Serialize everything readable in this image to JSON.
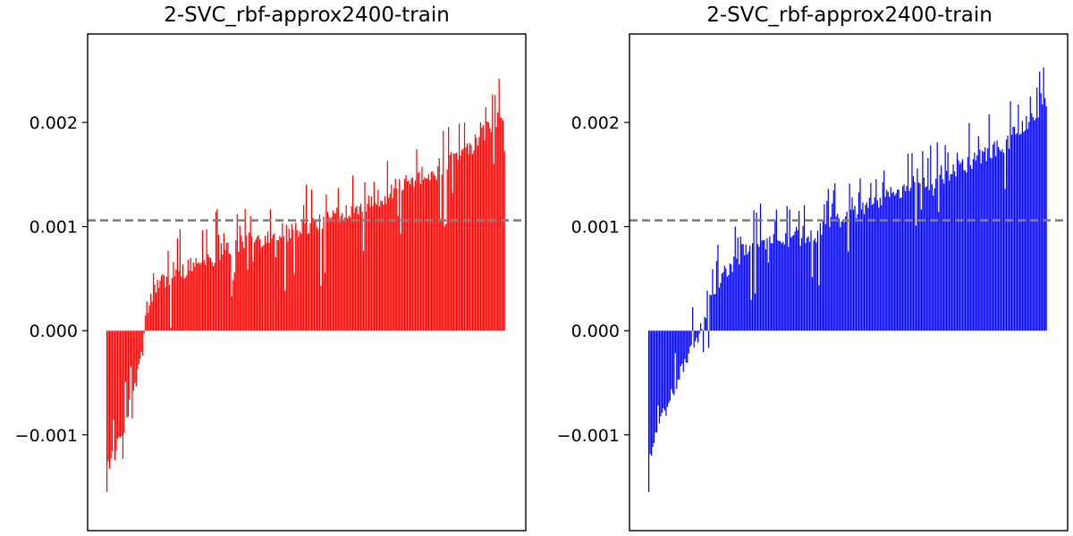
{
  "chart_data": [
    {
      "type": "bar",
      "title": "2-SVC_rbf-approx2400-train",
      "xlabel": "",
      "ylabel": "",
      "ylim": [
        -0.00192,
        0.00285
      ],
      "xticks_visible": false,
      "yticks": [
        -0.001,
        0.0,
        0.001,
        0.002
      ],
      "ytick_labels": [
        "−0.001",
        "0.000",
        "0.001",
        "0.002"
      ],
      "bar_color": "#ff0000",
      "reference_line": {
        "y": 0.00106,
        "color": "#808080",
        "style": "dashed"
      },
      "n_bars": 300,
      "shape": {
        "baseline_knots": [
          [
            0,
            -0.0013
          ],
          [
            0.03,
            -0.0011
          ],
          [
            0.06,
            -0.0007
          ],
          [
            0.09,
            -0.0002
          ],
          [
            0.1,
            0.0002
          ],
          [
            0.12,
            0.0004
          ],
          [
            0.15,
            0.0005
          ],
          [
            0.2,
            0.0006
          ],
          [
            0.3,
            0.0008
          ],
          [
            0.4,
            0.0009
          ],
          [
            0.5,
            0.001
          ],
          [
            0.6,
            0.00115
          ],
          [
            0.7,
            0.0013
          ],
          [
            0.8,
            0.0015
          ],
          [
            0.9,
            0.0017
          ],
          [
            1.0,
            0.0021
          ]
        ],
        "spike_amplitude": 0.00045,
        "min_value": -0.00155,
        "max_value": 0.00242
      }
    },
    {
      "type": "bar",
      "title": "2-SVC_rbf-approx2400-train",
      "xlabel": "",
      "ylabel": "",
      "ylim": [
        -0.00192,
        0.00285
      ],
      "xticks_visible": false,
      "yticks": [
        -0.001,
        0.0,
        0.001,
        0.002
      ],
      "ytick_labels": [
        "−0.001",
        "0.000",
        "0.001",
        "0.002"
      ],
      "bar_color": "#0000ff",
      "reference_line": {
        "y": 0.00106,
        "color": "#808080",
        "style": "dashed"
      },
      "n_bars": 300,
      "shape": {
        "baseline_knots": [
          [
            0,
            -0.0012
          ],
          [
            0.03,
            -0.0009
          ],
          [
            0.06,
            -0.0006
          ],
          [
            0.09,
            -0.0003
          ],
          [
            0.12,
            -0.0001
          ],
          [
            0.15,
            0.0003
          ],
          [
            0.2,
            0.0006
          ],
          [
            0.25,
            0.0008
          ],
          [
            0.3,
            0.00085
          ],
          [
            0.4,
            0.0009
          ],
          [
            0.5,
            0.0011
          ],
          [
            0.6,
            0.0013
          ],
          [
            0.7,
            0.0014
          ],
          [
            0.8,
            0.0016
          ],
          [
            0.9,
            0.0018
          ],
          [
            1.0,
            0.0022
          ]
        ],
        "spike_amplitude": 0.0004,
        "min_value": -0.00155,
        "max_value": 0.00262
      }
    }
  ]
}
